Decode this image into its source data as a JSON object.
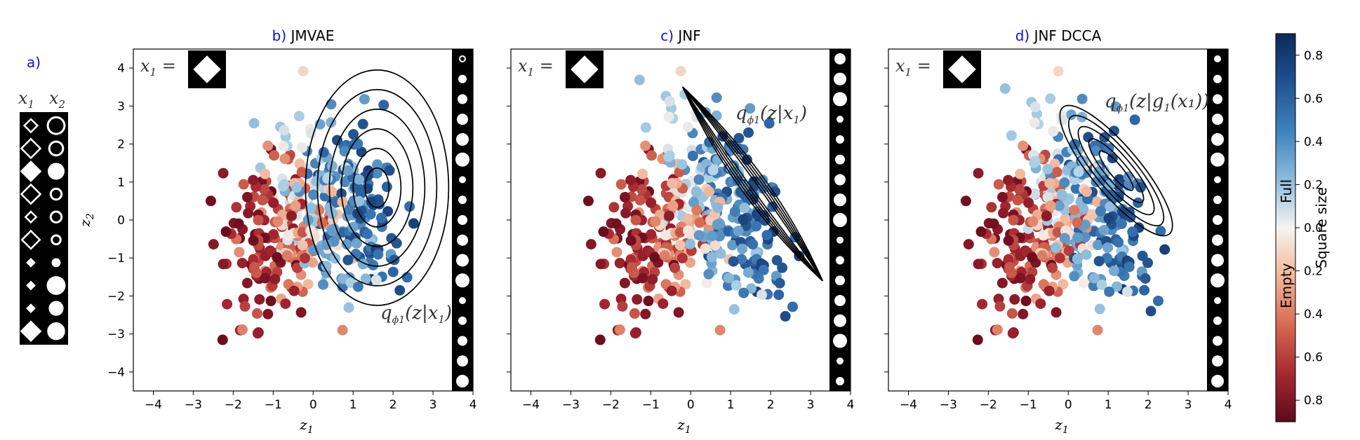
{
  "panel_a": {
    "letter": "a)",
    "col1_label": "x",
    "col1_sub": "1",
    "col2_label": "x",
    "col2_sub": "2",
    "rows": [
      {
        "sq": 0.55,
        "circ": 0.85,
        "filled_sq": false,
        "filled_circ": false
      },
      {
        "sq": 0.8,
        "circ": 0.7,
        "filled_sq": false,
        "filled_circ": false
      },
      {
        "sq": 0.8,
        "circ": 0.75,
        "filled_sq": true,
        "filled_circ": true
      },
      {
        "sq": 0.8,
        "circ": 0.55,
        "filled_sq": false,
        "filled_circ": false
      },
      {
        "sq": 0.45,
        "circ": 0.55,
        "filled_sq": false,
        "filled_circ": false
      },
      {
        "sq": 0.75,
        "circ": 0.45,
        "filled_sq": false,
        "filled_circ": false
      },
      {
        "sq": 0.3,
        "circ": 0.35,
        "filled_sq": true,
        "filled_circ": true
      },
      {
        "sq": 0.3,
        "circ": 0.85,
        "filled_sq": true,
        "filled_circ": true
      },
      {
        "sq": 0.3,
        "circ": 0.65,
        "filled_sq": true,
        "filled_circ": true
      },
      {
        "sq": 0.8,
        "circ": 0.8,
        "filled_sq": true,
        "filled_circ": true
      }
    ]
  },
  "colorbar": {
    "label": "Square size",
    "full_label": "Full",
    "empty_label": "Empty",
    "ticks": [
      "0.8",
      "0.6",
      "0.4",
      "0.2",
      "0.0",
      "0.2",
      "0.4",
      "0.6",
      "0.8"
    ],
    "colors": [
      "#1a3e75",
      "#2f6aab",
      "#6fa6cf",
      "#c3dbea",
      "#f5f1ef",
      "#f4c1a6",
      "#e1886a",
      "#b73a37",
      "#6b0d1f"
    ]
  },
  "panels": [
    {
      "letter": "b)",
      "title": "JMVAE",
      "inset_label": "x",
      "inset_sub": "1",
      "annotation": "q",
      "annotation_sub": "ϕ1",
      "annotation_body": "(z|x",
      "annotation_body_sub": "1",
      "annotation_tail": ")"
    },
    {
      "letter": "c)",
      "title": "JNF",
      "inset_label": "x",
      "inset_sub": "1",
      "annotation": "q",
      "annotation_sub": "ϕ1",
      "annotation_body": "(z|x",
      "annotation_body_sub": "1",
      "annotation_tail": ")"
    },
    {
      "letter": "d)",
      "title": "JNF  DCCA",
      "inset_label": "x",
      "inset_sub": "1",
      "annotation": "q",
      "annotation_sub": "ϕ1",
      "annotation_body": "(z|g",
      "annotation_body_sub": "1",
      "annotation_tail": "(x₁))"
    }
  ],
  "chart_data": [
    {
      "type": "scatter",
      "title": "JMVAE",
      "xlabel": "z1",
      "ylabel": "z2",
      "xlim": [
        -4.5,
        4.0
      ],
      "ylim": [
        -4.5,
        4.5
      ],
      "xticks": [
        -4,
        -3,
        -2,
        -1,
        0,
        1,
        2,
        3,
        4
      ],
      "yticks": [
        -4,
        -3,
        -2,
        -1,
        0,
        1,
        2,
        3,
        4
      ],
      "contour": {
        "kind": "ellipses",
        "center": [
          1.6,
          0.85
        ],
        "count": 6
      }
    },
    {
      "type": "scatter",
      "title": "JNF",
      "xlabel": "z1",
      "xlim": [
        -4.5,
        4.0
      ],
      "ylim": [
        -4.5,
        4.5
      ],
      "xticks": [
        -4,
        -3,
        -2,
        -1,
        0,
        1,
        2,
        3,
        4
      ],
      "contour": {
        "kind": "banana",
        "from": [
          -0.2,
          3.5
        ],
        "to": [
          3.3,
          -1.6
        ]
      }
    },
    {
      "type": "scatter",
      "title": "JNF  DCCA",
      "xlabel": "z1",
      "xlim": [
        -4.5,
        4.0
      ],
      "ylim": [
        -4.5,
        4.5
      ],
      "xticks": [
        -4,
        -3,
        -2,
        -1,
        0,
        1,
        2,
        3,
        4
      ],
      "contour": {
        "kind": "blob",
        "center": [
          1.2,
          1.3
        ]
      }
    }
  ]
}
